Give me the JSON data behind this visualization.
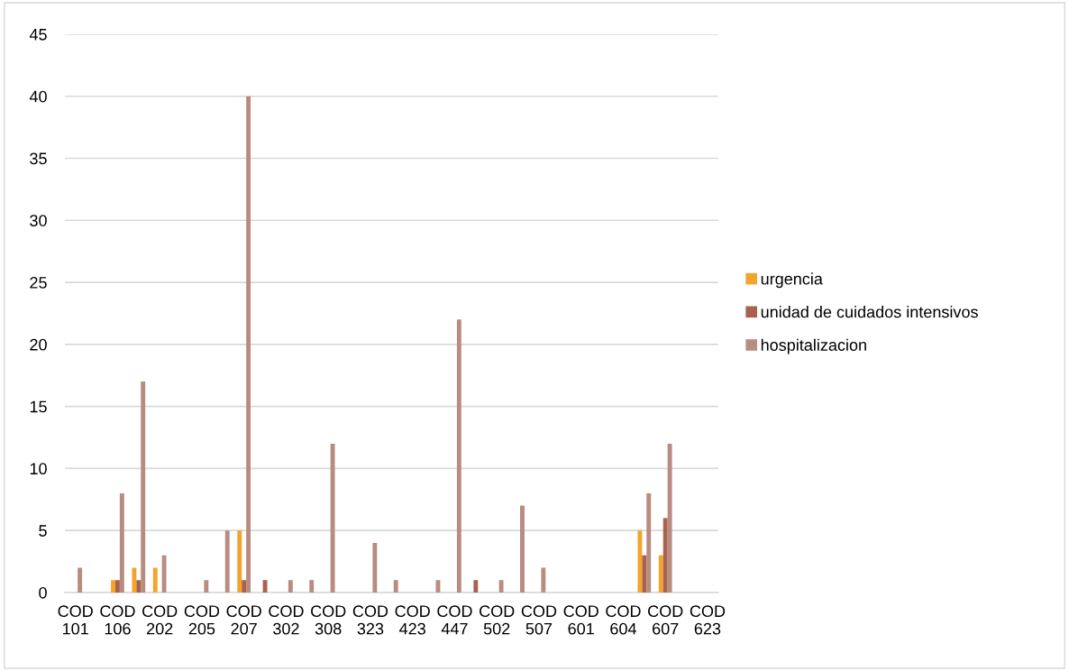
{
  "chart_data": {
    "type": "bar",
    "categories": [
      "COD 101",
      null,
      "COD 106",
      null,
      "COD 202",
      null,
      "COD 205",
      null,
      "COD 207",
      null,
      "COD 302",
      null,
      "COD 308",
      null,
      "COD 323",
      null,
      "COD 423",
      null,
      "COD 447",
      null,
      "COD 502",
      null,
      "COD 507",
      null,
      "COD 601",
      null,
      "COD 604",
      null,
      "COD 607",
      null,
      "COD 623"
    ],
    "series": [
      {
        "name": "urgencia",
        "color": "#f4a42c",
        "values": [
          null,
          null,
          1,
          2,
          2,
          null,
          null,
          null,
          5,
          null,
          null,
          null,
          null,
          null,
          null,
          null,
          null,
          null,
          null,
          null,
          null,
          null,
          null,
          null,
          null,
          null,
          null,
          5,
          3,
          null,
          null
        ]
      },
      {
        "name": "unidad de cuidados intensivos",
        "color": "#a9624c",
        "values": [
          null,
          null,
          1,
          1,
          null,
          null,
          null,
          null,
          1,
          1,
          null,
          null,
          null,
          null,
          null,
          null,
          null,
          null,
          null,
          1,
          null,
          null,
          null,
          null,
          null,
          null,
          null,
          3,
          6,
          null,
          null
        ]
      },
      {
        "name": "hospitalizacion",
        "color": "#b88c80",
        "values": [
          2,
          null,
          8,
          17,
          3,
          null,
          1,
          5,
          40,
          null,
          1,
          1,
          12,
          null,
          4,
          1,
          null,
          1,
          22,
          null,
          1,
          7,
          2,
          null,
          null,
          null,
          null,
          8,
          12,
          null,
          null
        ]
      }
    ],
    "ylim": [
      0,
      45
    ],
    "yticks": [
      0,
      5,
      10,
      15,
      20,
      25,
      30,
      35,
      40,
      45
    ],
    "grid": "y",
    "legend": "right"
  }
}
